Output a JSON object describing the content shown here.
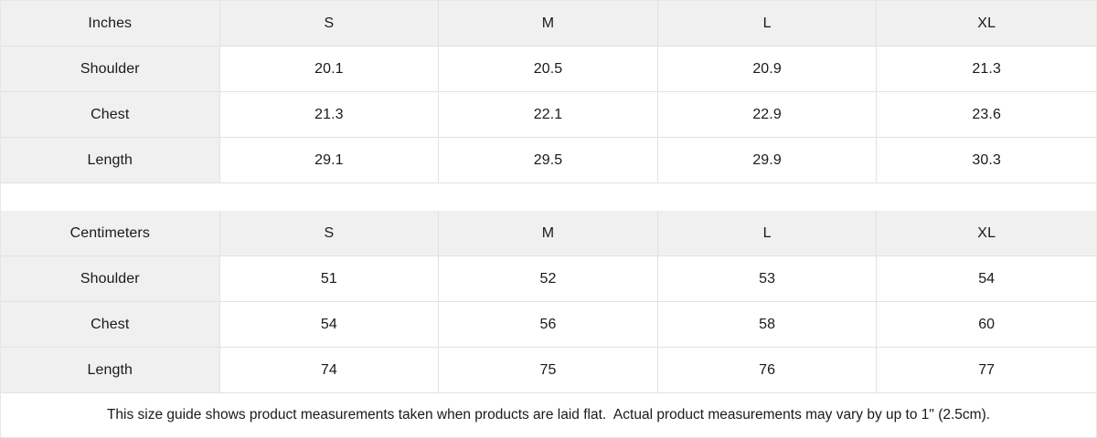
{
  "chart_data": [
    {
      "type": "table",
      "title": "Inches",
      "columns": [
        "Inches",
        "S",
        "M",
        "L",
        "XL"
      ],
      "rows": [
        {
          "label": "Shoulder",
          "values": [
            "20.1",
            "20.5",
            "20.9",
            "21.3"
          ]
        },
        {
          "label": "Chest",
          "values": [
            "21.3",
            "22.1",
            "22.9",
            "23.6"
          ]
        },
        {
          "label": "Length",
          "values": [
            "29.1",
            "29.5",
            "29.9",
            "30.3"
          ]
        }
      ]
    },
    {
      "type": "table",
      "title": "Centimeters",
      "columns": [
        "Centimeters",
        "S",
        "M",
        "L",
        "XL"
      ],
      "rows": [
        {
          "label": "Shoulder",
          "values": [
            "51",
            "52",
            "53",
            "54"
          ]
        },
        {
          "label": "Chest",
          "values": [
            "54",
            "56",
            "58",
            "60"
          ]
        },
        {
          "label": "Length",
          "values": [
            "74",
            "75",
            "76",
            "77"
          ]
        }
      ]
    }
  ],
  "footer": {
    "note": "This size guide shows product measurements taken when products are laid flat.  Actual product measurements may vary by up to 1\" (2.5cm)."
  },
  "colors": {
    "header_bg": "#f0f0f1",
    "border": "#e2e2e2",
    "text": "#1a1a1a",
    "background": "#ffffff"
  }
}
